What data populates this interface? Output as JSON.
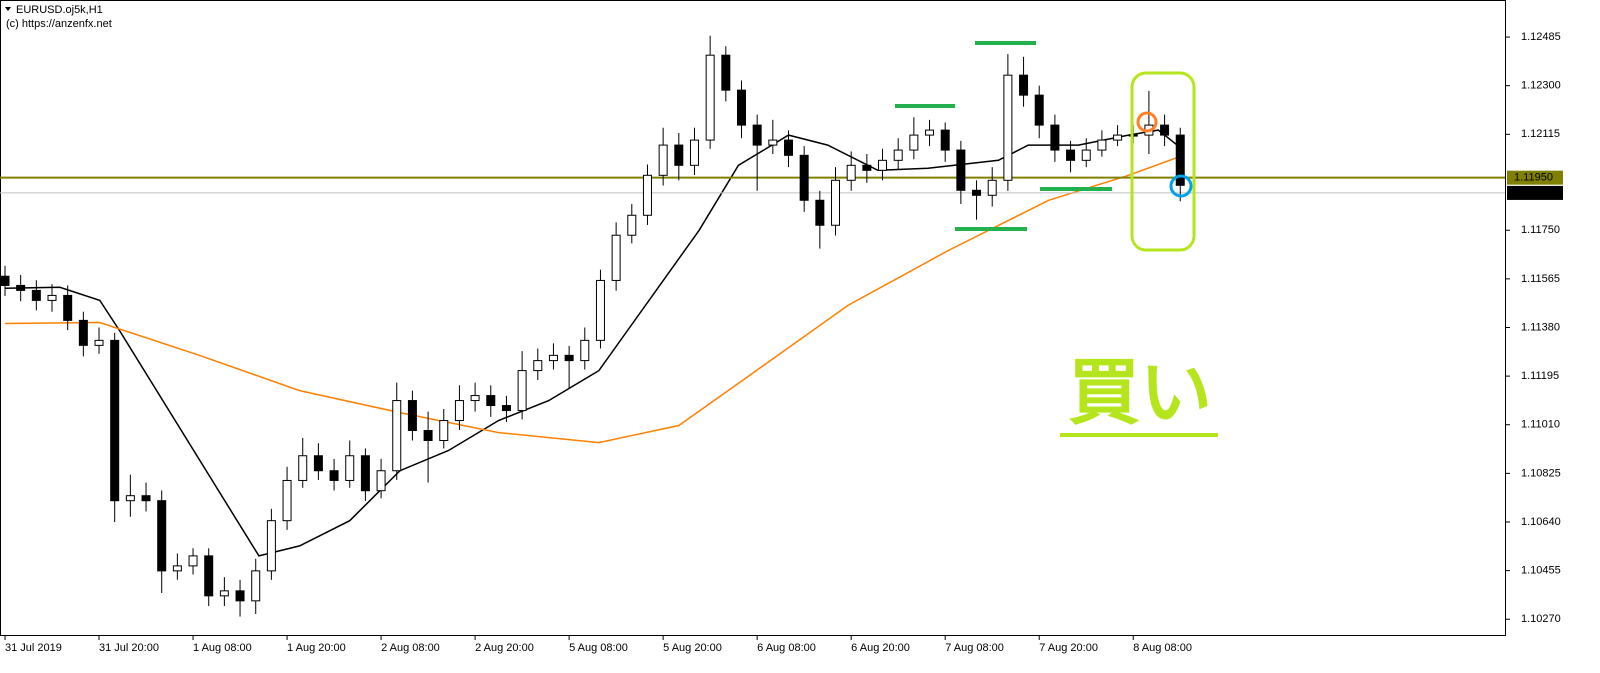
{
  "chart_data": {
    "type": "candlestick",
    "title": "EURUSD.oj5k,H1",
    "subtitle": "(c) https://anzenfx.net",
    "annotation": "買い",
    "categories": [
      "31 Jul 2019",
      null,
      null,
      null,
      null,
      null,
      "31 Jul 20:00",
      null,
      null,
      null,
      null,
      null,
      "1 Aug 08:00",
      null,
      null,
      null,
      null,
      null,
      "1 Aug 20:00",
      null,
      null,
      null,
      null,
      null,
      "2 Aug 08:00",
      null,
      null,
      null,
      null,
      null,
      "2 Aug 20:00",
      null,
      null,
      null,
      null,
      null,
      "5 Aug 08:00",
      null,
      null,
      null,
      null,
      null,
      "5 Aug 20:00",
      null,
      null,
      null,
      null,
      null,
      "6 Aug 08:00",
      null,
      null,
      null,
      null,
      null,
      "6 Aug 20:00",
      null,
      null,
      null,
      null,
      null,
      "7 Aug 08:00",
      null,
      null,
      null,
      null,
      null,
      "7 Aug 20:00",
      null,
      null,
      null,
      null,
      null,
      "8 Aug 08:00",
      null,
      null,
      null
    ],
    "open": [
      1.11575,
      1.1154,
      1.11521,
      1.11483,
      1.11502,
      1.11407,
      1.11312,
      1.11331,
      1.10721,
      1.1074,
      1.10721,
      1.10454,
      1.10473,
      1.10511,
      1.10359,
      1.10378,
      1.1034,
      1.10454,
      1.10645,
      1.10798,
      1.10892,
      1.10835,
      1.10798,
      1.10892,
      1.10759,
      1.10835,
      1.11102,
      1.10988,
      1.1095,
      1.11026,
      1.11102,
      1.11121,
      1.11083,
      1.11064,
      1.11216,
      1.11254,
      1.11274,
      1.11254,
      1.11331,
      1.11559,
      1.11731,
      1.11807,
      1.11959,
      1.12074,
      1.11997,
      1.12093,
      1.12416,
      1.12283,
      1.1215,
      1.12074,
      1.12093,
      1.12035,
      1.11864,
      1.11769,
      1.1194,
      1.11997,
      1.11978,
      1.12016,
      1.12055,
      1.12112,
      1.12131,
      1.12055,
      1.11902,
      1.11883,
      1.1194,
      1.1234,
      1.12264,
      1.1215,
      1.12055,
      1.12016,
      1.12055,
      1.12093,
      1.12112,
      1.12112,
      1.1215,
      1.12112
    ],
    "high": [
      1.11615,
      1.1158,
      1.1156,
      1.11545,
      1.1154,
      1.1144,
      1.1138,
      1.1136,
      1.1082,
      1.1079,
      1.1076,
      1.1052,
      1.1054,
      1.1054,
      1.1043,
      1.1042,
      1.105,
      1.1069,
      1.1085,
      1.1096,
      1.1094,
      1.1088,
      1.1095,
      1.1092,
      1.1088,
      1.1117,
      1.1114,
      1.1106,
      1.1107,
      1.1116,
      1.1117,
      1.1116,
      1.1112,
      1.1129,
      1.113,
      1.1132,
      1.1131,
      1.1138,
      1.116,
      1.1178,
      1.1185,
      1.12,
      1.1214,
      1.1212,
      1.1214,
      1.1249,
      1.1245,
      1.1232,
      1.1219,
      1.1217,
      1.1213,
      1.1207,
      1.119,
      1.1199,
      1.1205,
      1.1204,
      1.1206,
      1.121,
      1.1218,
      1.1217,
      1.1216,
      1.1209,
      1.1194,
      1.1199,
      1.1242,
      1.1241,
      1.123,
      1.1219,
      1.1209,
      1.121,
      1.1213,
      1.1215,
      1.1215,
      1.1228,
      1.1219,
      1.1214
    ],
    "low": [
      1.115,
      1.1148,
      1.11445,
      1.1144,
      1.1137,
      1.1127,
      1.1128,
      1.1064,
      1.1066,
      1.1068,
      1.1037,
      1.1042,
      1.1044,
      1.1032,
      1.1032,
      1.1028,
      1.1029,
      1.1042,
      1.1061,
      1.1077,
      1.108,
      1.1076,
      1.1077,
      1.1072,
      1.1073,
      1.108,
      1.1095,
      1.1079,
      1.1092,
      1.1099,
      1.1106,
      1.1104,
      1.1102,
      1.1103,
      1.1118,
      1.1122,
      1.1115,
      1.1122,
      1.113,
      1.1152,
      1.117,
      1.1177,
      1.1192,
      1.1194,
      1.1196,
      1.1206,
      1.1224,
      1.121,
      1.119,
      1.1204,
      1.1199,
      1.1182,
      1.1168,
      1.1173,
      1.119,
      1.1193,
      1.1194,
      1.1198,
      1.1202,
      1.1207,
      1.1201,
      1.1185,
      1.1179,
      1.1184,
      1.119,
      1.1222,
      1.121,
      1.1201,
      1.1197,
      1.1199,
      1.1203,
      1.1207,
      1.1208,
      1.1204,
      1.1207,
      1.1186
    ],
    "close": [
      1.1154,
      1.11521,
      1.11483,
      1.11502,
      1.11407,
      1.11312,
      1.11331,
      1.10721,
      1.1074,
      1.10721,
      1.10454,
      1.10473,
      1.10511,
      1.10359,
      1.10378,
      1.1034,
      1.10454,
      1.10645,
      1.10798,
      1.10892,
      1.10835,
      1.10798,
      1.10892,
      1.10759,
      1.10835,
      1.11102,
      1.10988,
      1.1095,
      1.11026,
      1.11102,
      1.11121,
      1.11083,
      1.11064,
      1.11216,
      1.11254,
      1.11274,
      1.11254,
      1.11331,
      1.11559,
      1.11731,
      1.11807,
      1.11959,
      1.12074,
      1.11997,
      1.12093,
      1.12416,
      1.12283,
      1.1215,
      1.12074,
      1.12093,
      1.12035,
      1.11864,
      1.11769,
      1.1194,
      1.11997,
      1.11978,
      1.12016,
      1.12055,
      1.12112,
      1.12131,
      1.12055,
      1.11902,
      1.11883,
      1.1194,
      1.1234,
      1.12264,
      1.1215,
      1.12055,
      1.12016,
      1.12055,
      1.12093,
      1.12112,
      1.12112,
      1.1215,
      1.12112,
      1.11921
    ],
    "series": [
      {
        "color": "#000000",
        "x": [
          0,
          3.5,
          6.05,
          7.3,
          16.2,
          18.8,
          22.0,
          25.2,
          28.3,
          31.5,
          34.7,
          37.9,
          41.1,
          44.3,
          46.8,
          50.0,
          52.5,
          55.7,
          58.9,
          63.4,
          65.3,
          68.5,
          71.7,
          73.6,
          75.2
        ],
        "values": [
          1.11529,
          1.11533,
          1.11483,
          1.11369,
          1.10511,
          1.10549,
          1.10645,
          1.10835,
          1.10912,
          1.11026,
          1.11102,
          1.11216,
          1.11483,
          1.1175,
          1.11997,
          1.12112,
          1.12074,
          1.11978,
          1.11986,
          1.12016,
          1.12074,
          1.12074,
          1.12112,
          1.12131,
          1.12055
        ]
      },
      {
        "color": "#ff8000",
        "x": [
          0,
          6.05,
          12.4,
          18.8,
          25.2,
          31.5,
          37.9,
          43.0,
          47.5,
          53.8,
          60.2,
          66.6,
          71.7,
          75.2
        ],
        "values": [
          1.11395,
          1.11399,
          1.11274,
          1.1114,
          1.11056,
          1.1098,
          1.10942,
          1.11007,
          1.11197,
          1.11464,
          1.11673,
          1.11864,
          1.11959,
          1.12035
        ]
      }
    ],
    "price_lines": [
      {
        "value": 1.1195,
        "label": "1.11950",
        "color": "#808000"
      },
      {
        "value": 1.11892,
        "color": "#c0c0c0"
      }
    ],
    "ylim": [
      1.1021,
      1.12626
    ],
    "yticks": [
      1.12485,
      {
        "value": 1.123,
        "label": "1.12300"
      },
      1.12115,
      {
        "value": 1.1175,
        "label": "1.11750"
      },
      1.11565,
      {
        "value": 1.1138,
        "label": "1.11380"
      },
      1.11195,
      {
        "value": 1.1101,
        "label": "1.11010"
      },
      1.10825,
      {
        "value": 1.1064,
        "label": "1.10640"
      },
      1.10455,
      {
        "value": 1.1027,
        "label": "1.10270"
      }
    ],
    "bull_color": "#ffffff",
    "bear_color": "#000000"
  }
}
